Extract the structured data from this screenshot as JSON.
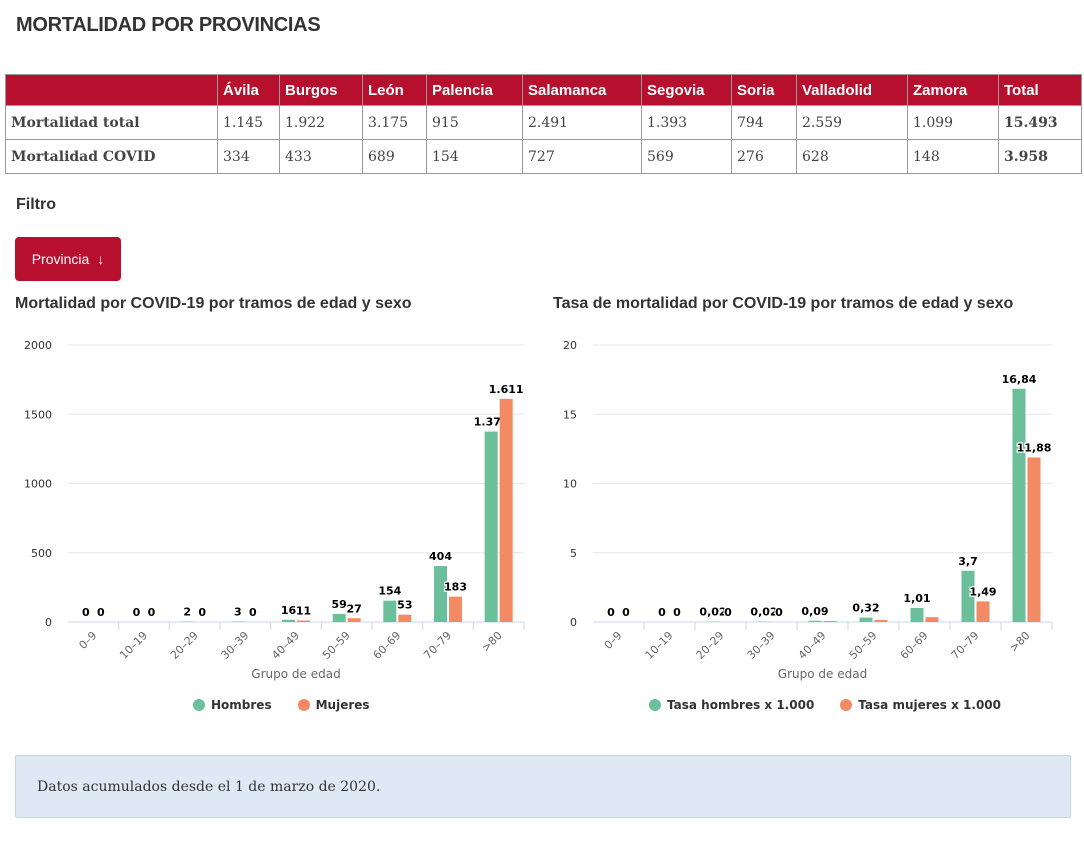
{
  "page": {
    "title": "MORTALIDAD POR PROVINCIAS",
    "filter_label": "Filtro",
    "province_button": "Provincia",
    "info": "Datos acumulados desde el 1 de marzo de 2020."
  },
  "table": {
    "headers": [
      "",
      "Ávila",
      "Burgos",
      "León",
      "Palencia",
      "Salamanca",
      "Segovia",
      "Soria",
      "Valladolid",
      "Zamora",
      "Total"
    ],
    "rows": [
      [
        "Mortalidad total",
        "1.145",
        "1.922",
        "3.175",
        "915",
        "2.491",
        "1.393",
        "794",
        "2.559",
        "1.099",
        "15.493"
      ],
      [
        "Mortalidad COVID",
        "334",
        "433",
        "689",
        "154",
        "727",
        "569",
        "276",
        "628",
        "148",
        "3.958"
      ]
    ]
  },
  "colors": {
    "brand": "#b7102f",
    "hombres": "#6cbf9b",
    "mujeres": "#f28a63",
    "info_bg": "#dfe9f5"
  },
  "chart_data": [
    {
      "type": "bar",
      "title": "Mortalidad por COVID-19 por tramos de edad y sexo",
      "xlabel": "Grupo de edad",
      "ylabel": "",
      "ylim": [
        0,
        2000
      ],
      "yticks": [
        "0",
        "500",
        "1000",
        "1500",
        "2000"
      ],
      "grid": true,
      "legend": "bottom",
      "categories": [
        "0–9",
        "10–19",
        "20–29",
        "30–39",
        "40–49",
        "50–59",
        "60–69",
        "70–79",
        ">80"
      ],
      "series": [
        {
          "name": "Hombres",
          "values": [
            0,
            0,
            2,
            3,
            16,
            59,
            154,
            404,
            1375
          ],
          "labels": [
            "0",
            "0",
            "2",
            "3",
            "16",
            "59",
            "154",
            "404",
            "1.375"
          ]
        },
        {
          "name": "Mujeres",
          "values": [
            0,
            0,
            0,
            0,
            11,
            27,
            53,
            183,
            1611
          ],
          "labels": [
            "0",
            "0",
            "0",
            "0",
            "11",
            "27",
            "53",
            "183",
            "1.611"
          ]
        }
      ]
    },
    {
      "type": "bar",
      "title": "Tasa de mortalidad por COVID-19 por tramos de edad y sexo",
      "xlabel": "Grupo de edad",
      "ylabel": "",
      "ylim": [
        0,
        20
      ],
      "yticks": [
        "0",
        "5",
        "10",
        "15",
        "20"
      ],
      "grid": true,
      "legend": "bottom",
      "categories": [
        "0–9",
        "10–19",
        "20–29",
        "30–39",
        "40–49",
        "50–59",
        "60–69",
        "70–79",
        ">80"
      ],
      "series": [
        {
          "name": "Tasa hombres x 1.000",
          "values": [
            0,
            0,
            0.02,
            0.02,
            0.09,
            0.32,
            1.01,
            3.7,
            16.84
          ],
          "labels": [
            "0",
            "0",
            "0,02",
            "0,02",
            "0,09",
            "0,32",
            "1,01",
            "3,7",
            "16,84"
          ]
        },
        {
          "name": "Tasa mujeres x 1.000",
          "values": [
            0,
            0,
            0,
            0,
            0.07,
            0.15,
            0.35,
            1.49,
            11.88
          ],
          "labels": [
            "0",
            "0",
            "0",
            "0",
            "",
            "",
            "",
            "1,49",
            "11,88"
          ]
        }
      ]
    }
  ]
}
